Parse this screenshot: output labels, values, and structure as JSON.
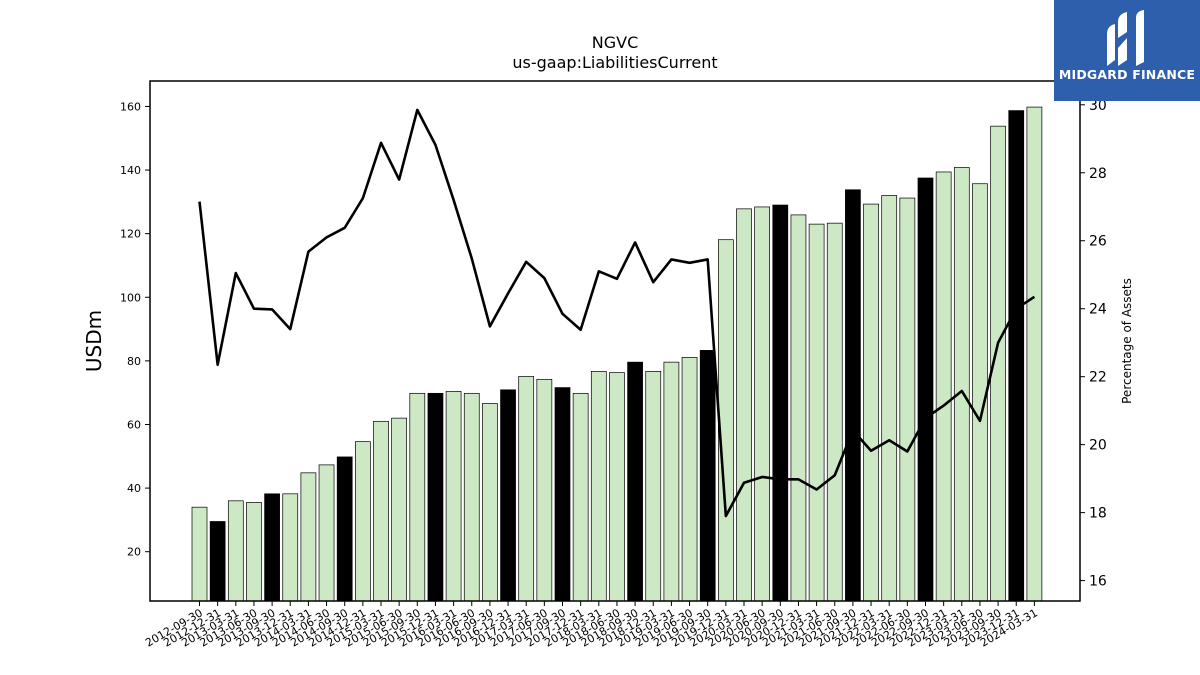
{
  "chart_data": {
    "type": "bar",
    "title": "NGVC",
    "subtitle": "us-gaap:LiabilitiesCurrent",
    "ylabel": "USDm",
    "y2label": "Percentage of Assets",
    "ylim": [
      4.5,
      168
    ],
    "y2lim": [
      15.4,
      30.7
    ],
    "yticks": [
      20,
      40,
      60,
      80,
      100,
      120,
      140,
      160
    ],
    "y2ticks": [
      16,
      18,
      20,
      22,
      24,
      26,
      28,
      30
    ],
    "categories": [
      "2012-09-30",
      "2012-12-31",
      "2013-03-31",
      "2013-06-30",
      "2013-09-30",
      "2013-12-31",
      "2014-03-31",
      "2014-06-30",
      "2014-09-30",
      "2014-12-31",
      "2015-03-31",
      "2015-06-30",
      "2015-09-30",
      "2015-12-31",
      "2016-03-31",
      "2016-06-30",
      "2016-09-30",
      "2016-12-31",
      "2017-03-31",
      "2017-06-30",
      "2017-09-30",
      "2017-12-31",
      "2018-03-31",
      "2018-06-30",
      "2018-09-30",
      "2018-12-31",
      "2019-03-31",
      "2019-06-30",
      "2019-09-30",
      "2019-12-31",
      "2020-03-31",
      "2020-06-30",
      "2020-09-30",
      "2020-12-31",
      "2021-03-31",
      "2021-06-30",
      "2021-09-30",
      "2021-12-31",
      "2022-03-31",
      "2022-06-30",
      "2022-09-30",
      "2022-12-31",
      "2023-03-31",
      "2023-06-30",
      "2023-09-30",
      "2023-12-31",
      "2024-03-31"
    ],
    "series": [
      {
        "kind": "bar",
        "values": [
          34.0,
          29.5,
          36.0,
          35.5,
          38.2,
          38.2,
          44.8,
          47.3,
          49.8,
          54.6,
          61.0,
          62.0,
          69.8,
          69.8,
          70.4,
          69.8,
          66.6,
          70.9,
          75.1,
          74.2,
          71.6,
          69.8,
          76.7,
          76.3,
          79.6,
          76.7,
          79.6,
          81.1,
          83.3,
          118.1,
          127.8,
          128.4,
          129.0,
          125.9,
          123.0,
          123.3,
          133.8,
          129.3,
          132.0,
          131.2,
          137.5,
          139.4,
          140.8,
          135.7,
          153.8,
          158.7,
          159.8
        ],
        "highlight": [
          false,
          true,
          false,
          false,
          true,
          false,
          false,
          false,
          true,
          false,
          false,
          false,
          false,
          true,
          false,
          false,
          false,
          true,
          false,
          false,
          true,
          false,
          false,
          false,
          true,
          false,
          false,
          false,
          true,
          false,
          false,
          false,
          true,
          false,
          false,
          false,
          true,
          false,
          false,
          false,
          true,
          false,
          false,
          false,
          false,
          true,
          false
        ],
        "color": "#cde8c4",
        "highlight_color": "#000000"
      },
      {
        "kind": "line",
        "axis": "right",
        "values": [
          27.15,
          22.35,
          25.05,
          24.0,
          23.98,
          23.4,
          25.68,
          26.1,
          26.38,
          27.25,
          28.88,
          27.8,
          29.85,
          28.82,
          27.2,
          25.48,
          23.48,
          24.45,
          25.38,
          24.9,
          23.85,
          23.38,
          25.1,
          24.88,
          25.95,
          24.78,
          25.45,
          25.35,
          25.45,
          17.9,
          18.88,
          19.05,
          18.98,
          18.98,
          18.68,
          19.1,
          20.42,
          19.82,
          20.13,
          19.8,
          20.78,
          21.15,
          21.58,
          20.7,
          23.0,
          24.0,
          24.35
        ],
        "color": "#000000"
      }
    ],
    "legend": "none",
    "grid": false
  },
  "logo": {
    "text": "MIDGARD FINANCE",
    "background": "#2d5fad",
    "icon": "midgard-m-icon"
  }
}
